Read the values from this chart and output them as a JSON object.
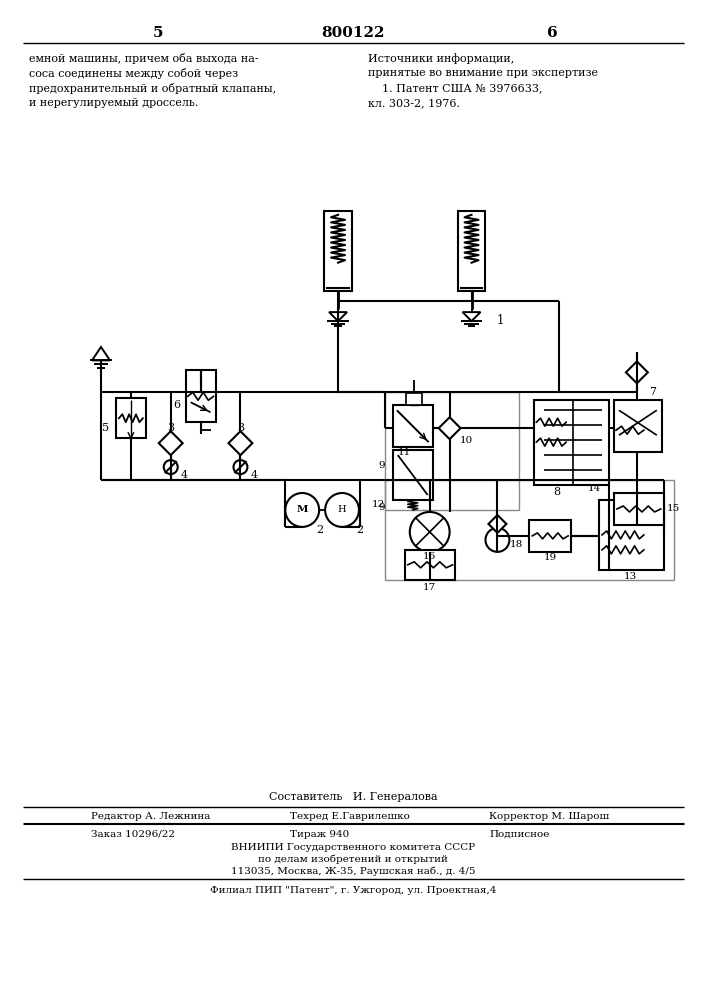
{
  "page_number_left": "5",
  "page_number_center": "800122",
  "page_number_right": "6",
  "top_left_text": [
    "емной машины, причем оба выхода на-",
    "соса соединены между собой через",
    "предохранительный и обратный клапаны,",
    "и нерегулируемый дроссель."
  ],
  "top_right_text": [
    "Источники информации,",
    "принятые во внимание при экспертизе",
    "    1. Патент США № 3976633,",
    "кл. 303-2, 1976."
  ],
  "bottom_line1": "Составитель   И. Генералова",
  "bottom_line2_left": "Редактор А. Лежнина",
  "bottom_line2_mid": "Техред Е.Гаврилешко",
  "bottom_line2_right": "Корректор М. Шарош",
  "bottom_line3_left": "Заказ 10296/22",
  "bottom_line3_mid": "Тираж 940",
  "bottom_line3_right": "Подписное",
  "bottom_line4": "ВНИИПИ Государственного комитета СССР",
  "bottom_line5": "по делам изобретений и открытий",
  "bottom_line6": "113035, Москва, Ж-35, Раушская наб., д. 4/5",
  "bottom_line7": "Филиал ПИП \"Патент\", г. Ужгород, ул. Проектная,4",
  "bg_color": "#ffffff"
}
